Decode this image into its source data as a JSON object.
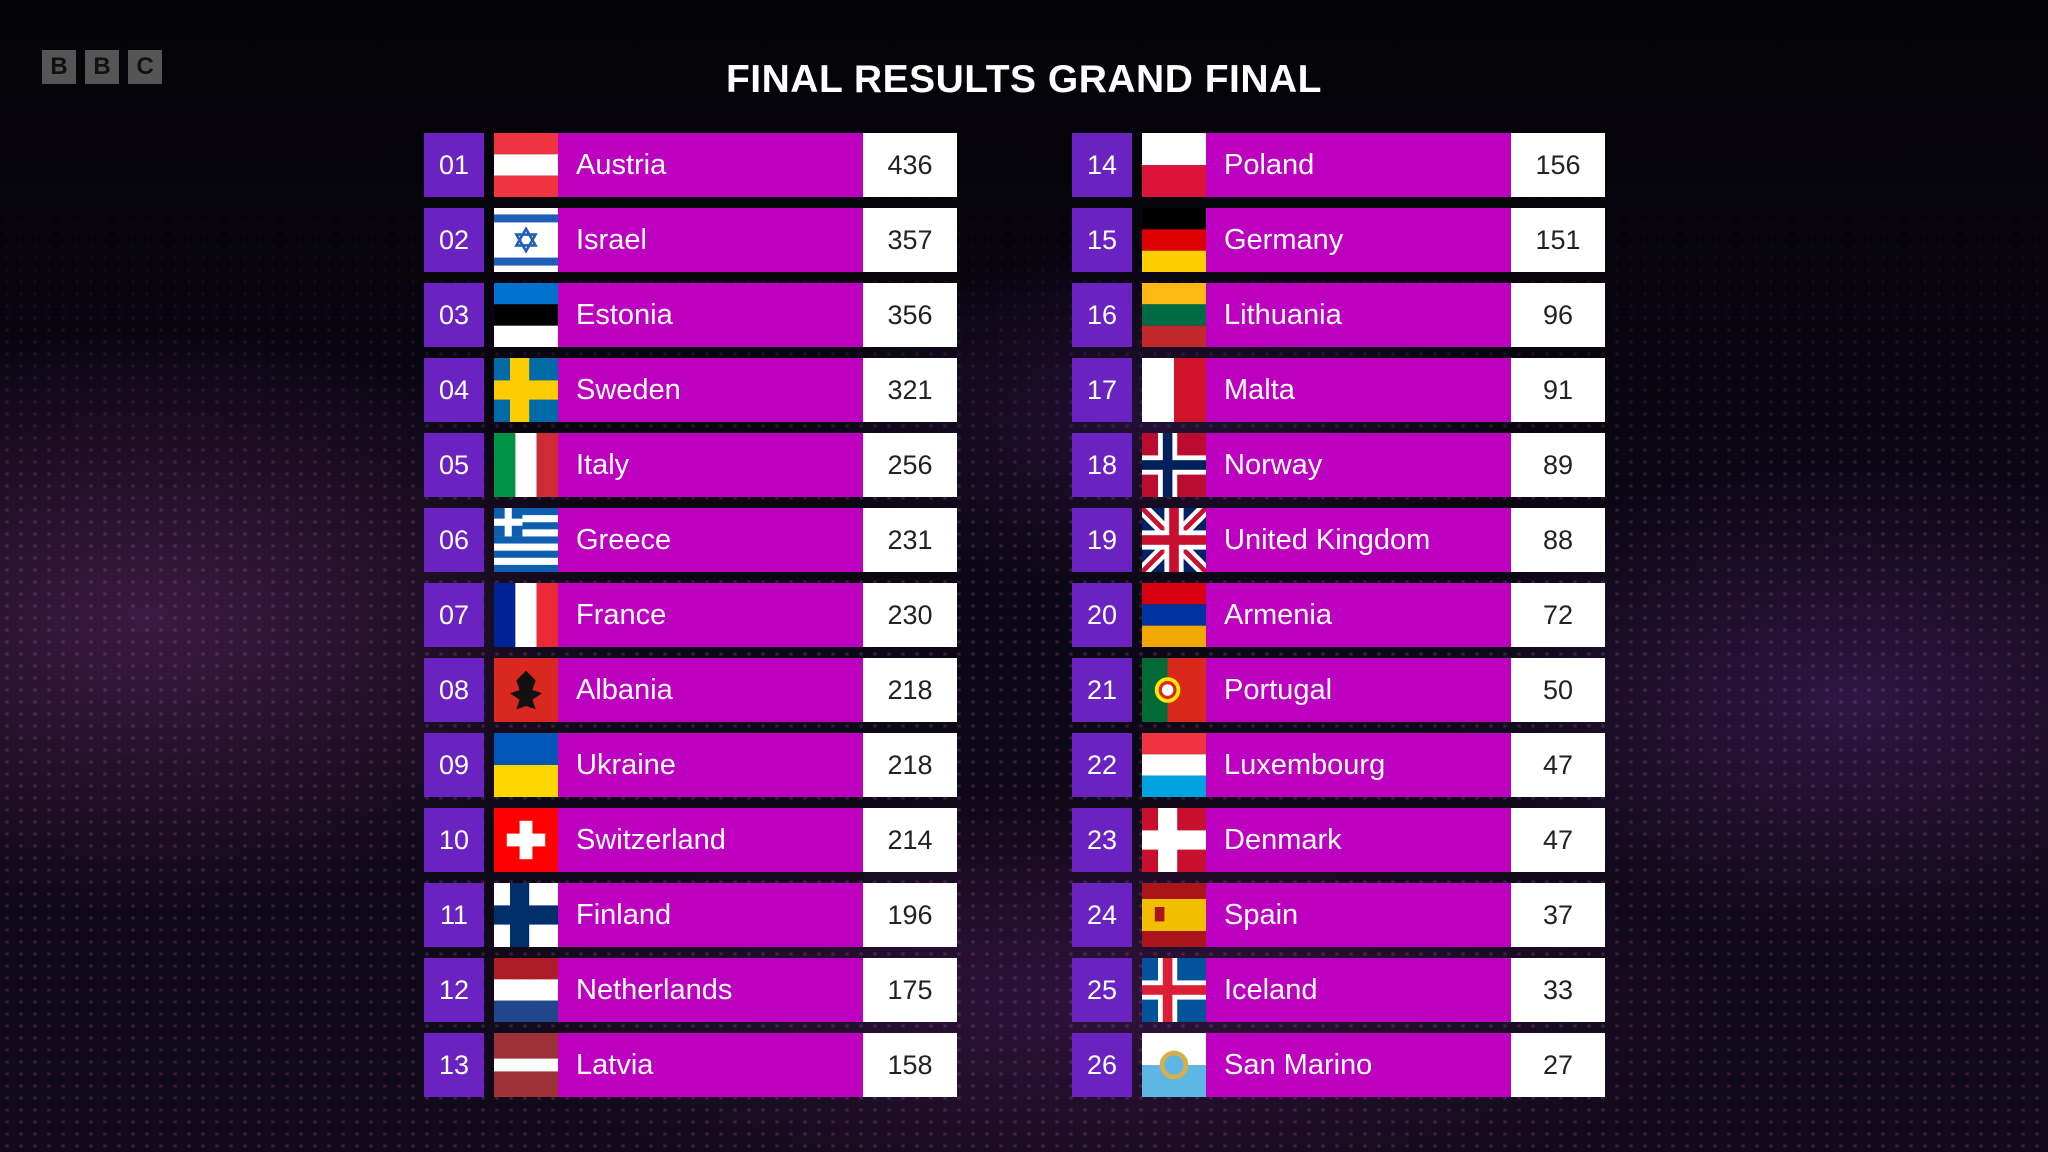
{
  "header": {
    "title": "FINAL RESULTS GRAND FINAL",
    "logo": "BBC"
  },
  "colors": {
    "rank_bg": "#6a22c0",
    "name_bg": "#bd00bf",
    "score_bg": "#ffffff"
  },
  "results": [
    {
      "rank": "01",
      "country": "Austria",
      "points": "436",
      "flag": "at"
    },
    {
      "rank": "02",
      "country": "Israel",
      "points": "357",
      "flag": "il"
    },
    {
      "rank": "03",
      "country": "Estonia",
      "points": "356",
      "flag": "ee"
    },
    {
      "rank": "04",
      "country": "Sweden",
      "points": "321",
      "flag": "se"
    },
    {
      "rank": "05",
      "country": "Italy",
      "points": "256",
      "flag": "it"
    },
    {
      "rank": "06",
      "country": "Greece",
      "points": "231",
      "flag": "gr"
    },
    {
      "rank": "07",
      "country": "France",
      "points": "230",
      "flag": "fr"
    },
    {
      "rank": "08",
      "country": "Albania",
      "points": "218",
      "flag": "al"
    },
    {
      "rank": "09",
      "country": "Ukraine",
      "points": "218",
      "flag": "ua"
    },
    {
      "rank": "10",
      "country": "Switzerland",
      "points": "214",
      "flag": "ch"
    },
    {
      "rank": "11",
      "country": "Finland",
      "points": "196",
      "flag": "fi"
    },
    {
      "rank": "12",
      "country": "Netherlands",
      "points": "175",
      "flag": "nl"
    },
    {
      "rank": "13",
      "country": "Latvia",
      "points": "158",
      "flag": "lv"
    },
    {
      "rank": "14",
      "country": "Poland",
      "points": "156",
      "flag": "pl"
    },
    {
      "rank": "15",
      "country": "Germany",
      "points": "151",
      "flag": "de"
    },
    {
      "rank": "16",
      "country": "Lithuania",
      "points": "96",
      "flag": "lt"
    },
    {
      "rank": "17",
      "country": "Malta",
      "points": "91",
      "flag": "mt"
    },
    {
      "rank": "18",
      "country": "Norway",
      "points": "89",
      "flag": "no"
    },
    {
      "rank": "19",
      "country": "United Kingdom",
      "points": "88",
      "flag": "gb"
    },
    {
      "rank": "20",
      "country": "Armenia",
      "points": "72",
      "flag": "am"
    },
    {
      "rank": "21",
      "country": "Portugal",
      "points": "50",
      "flag": "pt"
    },
    {
      "rank": "22",
      "country": "Luxembourg",
      "points": "47",
      "flag": "lu"
    },
    {
      "rank": "23",
      "country": "Denmark",
      "points": "47",
      "flag": "dk"
    },
    {
      "rank": "24",
      "country": "Spain",
      "points": "37",
      "flag": "es"
    },
    {
      "rank": "25",
      "country": "Iceland",
      "points": "33",
      "flag": "is"
    },
    {
      "rank": "26",
      "country": "San Marino",
      "points": "27",
      "flag": "sm"
    }
  ]
}
